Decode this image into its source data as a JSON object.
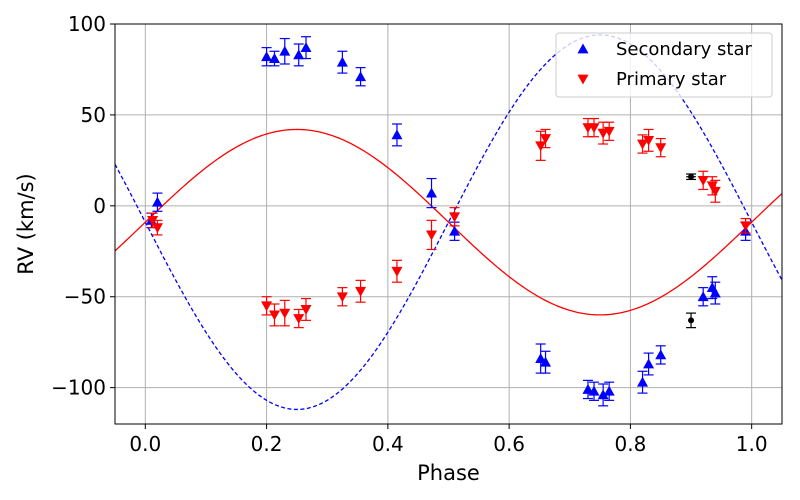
{
  "chart_data": {
    "type": "scatter",
    "title": "",
    "xlabel": "Phase",
    "ylabel": "RV (km/s)",
    "xlim": [
      -0.05,
      1.05
    ],
    "ylim": [
      -120,
      100
    ],
    "grid": true,
    "legend_position": "top-right",
    "x_ticks": [
      0.0,
      0.2,
      0.4,
      0.6,
      0.8,
      1.0
    ],
    "x_tick_labels": [
      "0.0",
      "0.2",
      "0.4",
      "0.6",
      "0.8",
      "1.0"
    ],
    "y_ticks": [
      -100,
      -50,
      0,
      50,
      100
    ],
    "y_tick_labels": [
      "−100",
      "−50",
      "0",
      "50",
      "100"
    ],
    "series": [
      {
        "name": "Secondary star",
        "marker": "triangle-up",
        "color": "#0000ff",
        "points": [
          {
            "x": 0.01,
            "y": -8,
            "err": 4
          },
          {
            "x": 0.02,
            "y": 2,
            "err": 5
          },
          {
            "x": 0.2,
            "y": 82,
            "err": 5
          },
          {
            "x": 0.213,
            "y": 81,
            "err": 4
          },
          {
            "x": 0.23,
            "y": 85,
            "err": 7
          },
          {
            "x": 0.253,
            "y": 83,
            "err": 6
          },
          {
            "x": 0.265,
            "y": 87,
            "err": 6
          },
          {
            "x": 0.325,
            "y": 79,
            "err": 6
          },
          {
            "x": 0.355,
            "y": 71,
            "err": 5
          },
          {
            "x": 0.415,
            "y": 39,
            "err": 6
          },
          {
            "x": 0.472,
            "y": 7,
            "err": 8
          },
          {
            "x": 0.51,
            "y": -14,
            "err": 5
          },
          {
            "x": 0.652,
            "y": -84,
            "err": 8
          },
          {
            "x": 0.66,
            "y": -86,
            "err": 6
          },
          {
            "x": 0.73,
            "y": -101,
            "err": 5
          },
          {
            "x": 0.74,
            "y": -102,
            "err": 5
          },
          {
            "x": 0.755,
            "y": -104,
            "err": 6
          },
          {
            "x": 0.765,
            "y": -102,
            "err": 5
          },
          {
            "x": 0.82,
            "y": -97,
            "err": 6
          },
          {
            "x": 0.83,
            "y": -87,
            "err": 6
          },
          {
            "x": 0.85,
            "y": -82,
            "err": 5
          },
          {
            "x": 0.92,
            "y": -50,
            "err": 5
          },
          {
            "x": 0.935,
            "y": -45,
            "err": 6
          },
          {
            "x": 0.94,
            "y": -48,
            "err": 6
          },
          {
            "x": 0.99,
            "y": -14,
            "err": 5
          }
        ]
      },
      {
        "name": "Primary star",
        "marker": "triangle-down",
        "color": "#ff0000",
        "points": [
          {
            "x": 0.012,
            "y": -8,
            "err": 4
          },
          {
            "x": 0.02,
            "y": -12,
            "err": 4
          },
          {
            "x": 0.2,
            "y": -55,
            "err": 5
          },
          {
            "x": 0.213,
            "y": -60,
            "err": 6
          },
          {
            "x": 0.23,
            "y": -59,
            "err": 7
          },
          {
            "x": 0.253,
            "y": -62,
            "err": 5
          },
          {
            "x": 0.265,
            "y": -57,
            "err": 6
          },
          {
            "x": 0.325,
            "y": -50,
            "err": 5
          },
          {
            "x": 0.355,
            "y": -47,
            "err": 6
          },
          {
            "x": 0.415,
            "y": -36,
            "err": 6
          },
          {
            "x": 0.472,
            "y": -16,
            "err": 8
          },
          {
            "x": 0.51,
            "y": -6,
            "err": 5
          },
          {
            "x": 0.652,
            "y": 33,
            "err": 8
          },
          {
            "x": 0.66,
            "y": 37,
            "err": 5
          },
          {
            "x": 0.73,
            "y": 43,
            "err": 5
          },
          {
            "x": 0.74,
            "y": 43,
            "err": 5
          },
          {
            "x": 0.755,
            "y": 40,
            "err": 6
          },
          {
            "x": 0.765,
            "y": 41,
            "err": 5
          },
          {
            "x": 0.82,
            "y": 34,
            "err": 5
          },
          {
            "x": 0.83,
            "y": 36,
            "err": 6
          },
          {
            "x": 0.85,
            "y": 32,
            "err": 5
          },
          {
            "x": 0.92,
            "y": 14,
            "err": 5
          },
          {
            "x": 0.935,
            "y": 11,
            "err": 5
          },
          {
            "x": 0.94,
            "y": 8,
            "err": 6
          },
          {
            "x": 0.99,
            "y": -11,
            "err": 4
          }
        ]
      },
      {
        "name": "Other",
        "marker": "circle",
        "color": "#000000",
        "in_legend": false,
        "points": [
          {
            "x": 0.9,
            "y": 16,
            "err": 1.5,
            "xerr": 0.008
          },
          {
            "x": 0.9,
            "y": -63,
            "err": 4
          }
        ]
      }
    ],
    "fits": [
      {
        "name": "Secondary fit",
        "color": "#0000ff",
        "style": "dashed",
        "K": 103,
        "gamma": -9,
        "phase0": 0.5
      },
      {
        "name": "Primary fit",
        "color": "#ff0000",
        "style": "solid",
        "K": 51,
        "gamma": -9,
        "phase0": 0.5
      }
    ]
  }
}
